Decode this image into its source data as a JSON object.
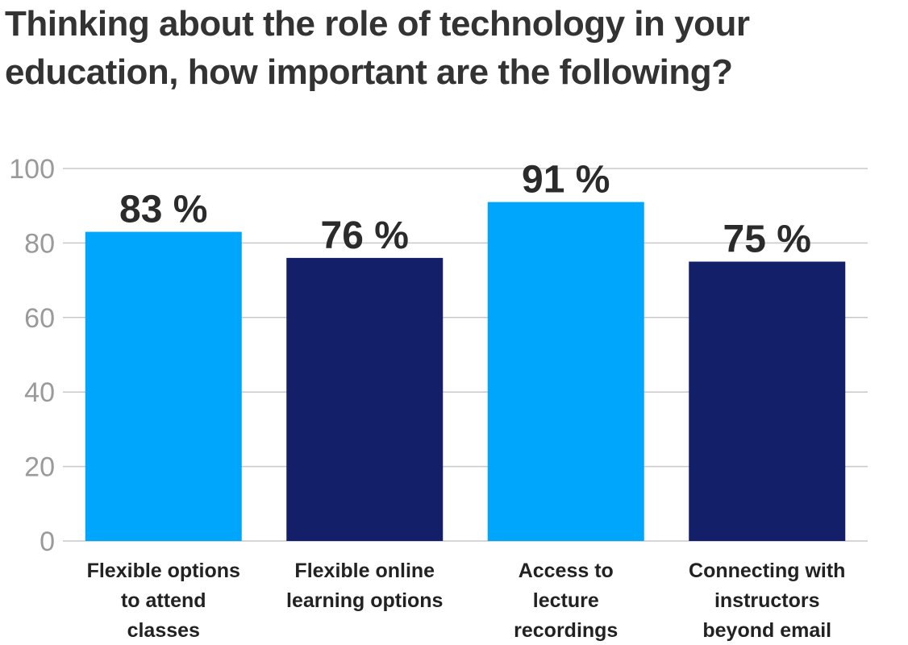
{
  "chart_data": {
    "type": "bar",
    "title": "Thinking about the role of technology in your education, how important are the following?",
    "categories": [
      [
        "Flexible options",
        "to attend",
        "classes"
      ],
      [
        "Flexible online",
        "learning options"
      ],
      [
        "Access to",
        "lecture",
        "recordings"
      ],
      [
        "Connecting with",
        "instructors",
        "beyond email"
      ]
    ],
    "values": [
      83,
      76,
      91,
      75
    ],
    "value_labels": [
      "83 %",
      "76 %",
      "91 %",
      "75 %"
    ],
    "bar_colors": [
      "#00a6fb",
      "#131f68",
      "#00a6fb",
      "#131f68"
    ],
    "ylim": [
      0,
      100
    ],
    "yticks": [
      0,
      20,
      40,
      60,
      80,
      100
    ],
    "ytick_labels": [
      "0",
      "20",
      "40",
      "60",
      "80",
      "100"
    ],
    "xlabel": "",
    "ylabel": "",
    "grid": true,
    "legend": "none"
  }
}
